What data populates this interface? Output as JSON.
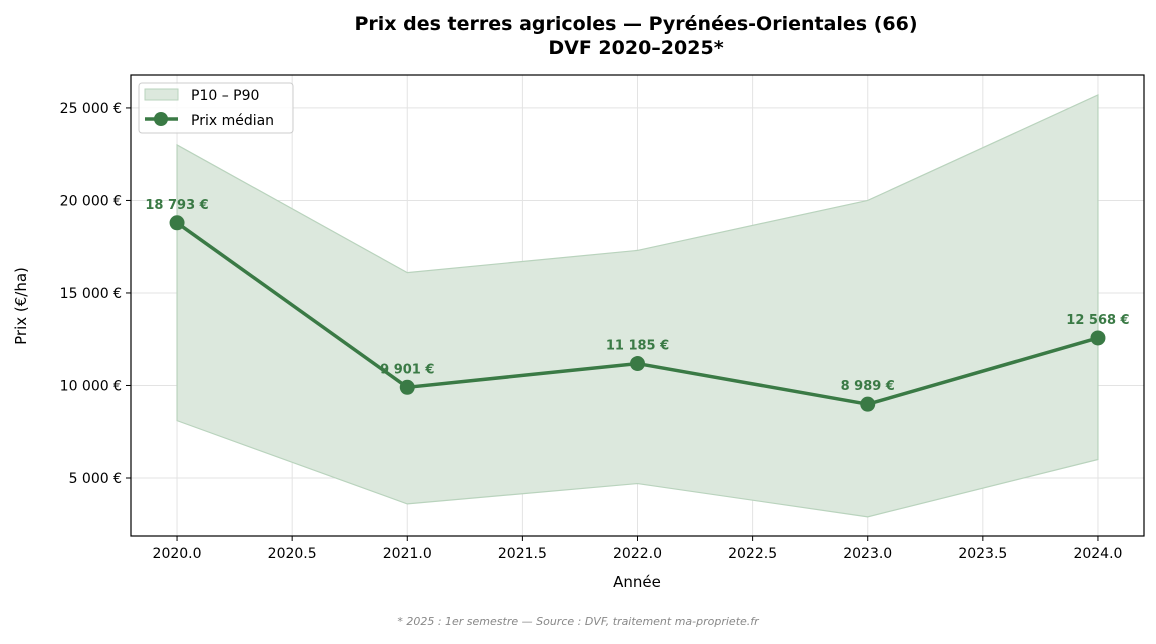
{
  "chart_data": {
    "type": "line",
    "title": "Prix des terres agricoles — Pyrénées-Orientales (66)",
    "subtitle": "DVF 2020–2025*",
    "xlabel": "Année",
    "ylabel": "Prix (€/ha)",
    "xlim": [
      2019.8,
      2024.2
    ],
    "ylim": [
      1865,
      26780
    ],
    "x_ticks": [
      "2020.0",
      "2020.5",
      "2021.0",
      "2021.5",
      "2022.0",
      "2022.5",
      "2023.0",
      "2023.5",
      "2024.0"
    ],
    "y_ticks": [
      "5 000 €",
      "10 000 €",
      "15 000 €",
      "20 000 €",
      "25 000 €"
    ],
    "grid": true,
    "legend_placement": "top-left",
    "x": [
      2020,
      2021,
      2022,
      2023,
      2024
    ],
    "series": [
      {
        "name": "Prix médian",
        "type": "line",
        "values": [
          18793,
          9901,
          11185,
          8989,
          12568
        ],
        "labels": [
          "18 793 €",
          "9 901 €",
          "11 185 €",
          "8 989 €",
          "12 568 €"
        ],
        "color": "#3a7a45"
      },
      {
        "name": "P10 – P90",
        "type": "band",
        "lower": [
          8100,
          3600,
          4700,
          2900,
          6000
        ],
        "upper": [
          23000,
          16100,
          17300,
          20000,
          25700
        ],
        "color": "#dce8dd"
      }
    ],
    "footnote": "* 2025 : 1er semestre — Source : DVF, traitement ma-propriete.fr"
  }
}
